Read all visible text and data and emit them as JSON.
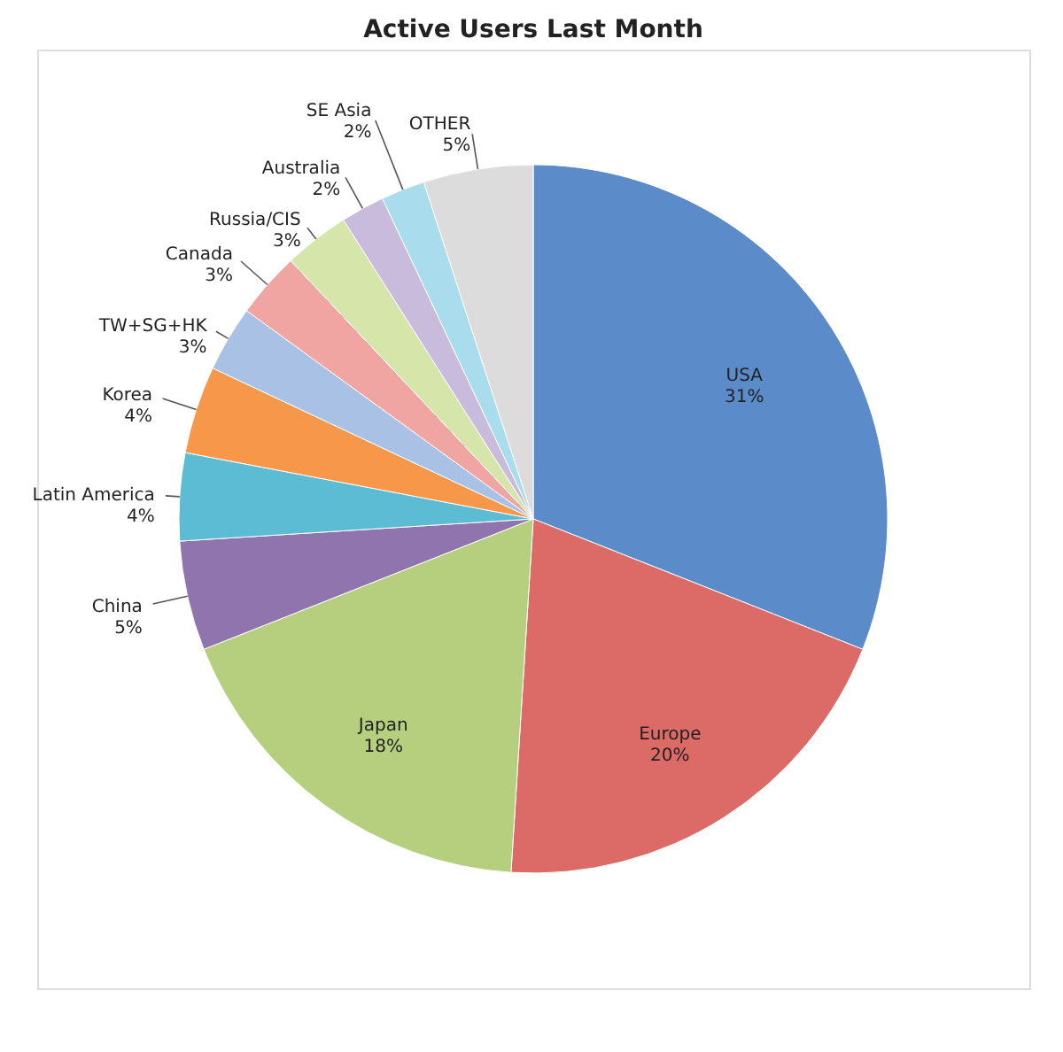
{
  "chart_data": {
    "type": "pie",
    "title": "Active Users Last Month",
    "categories": [
      "USA",
      "Europe",
      "Japan",
      "China",
      "Latin America",
      "Korea",
      "TW+SG+HK",
      "Canada",
      "Russia/CIS",
      "Australia",
      "SE Asia",
      "OTHER"
    ],
    "values": [
      31,
      20,
      18,
      5,
      4,
      4,
      3,
      3,
      3,
      2,
      2,
      5
    ],
    "value_labels": [
      "31%",
      "20%",
      "18%",
      "5%",
      "4%",
      "4%",
      "3%",
      "3%",
      "3%",
      "2%",
      "2%",
      "5%"
    ],
    "colors": [
      "#5b8bc8",
      "#dc6a66",
      "#b5cf7e",
      "#8f74ae",
      "#5bbcd3",
      "#f6974a",
      "#a9c1e4",
      "#f0a5a3",
      "#d6e5aa",
      "#c8bbdc",
      "#a9dcec",
      "#dcdcdc"
    ],
    "data_labels": true,
    "legend": false
  }
}
